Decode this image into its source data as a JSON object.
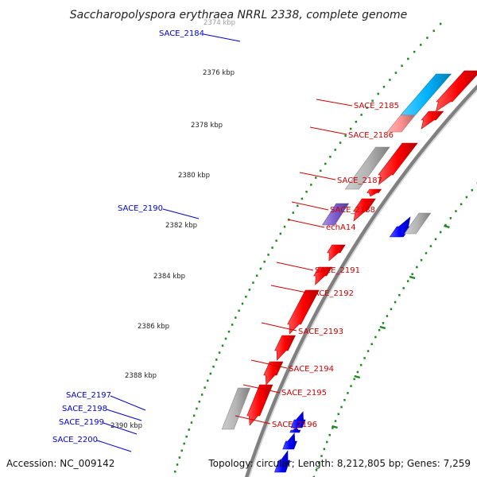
{
  "title": "Saccharopolyspora erythraea NRRL 2338, complete genome",
  "footer": {
    "accession": "Accession: NC_009142",
    "summary": "Topology: circular; Length: 8,212,805 bp; Genes: 7,259"
  },
  "colors": {
    "forward_gene": "#0000ff",
    "reverse_gene": "#ff0000",
    "label_left": "#0000cc",
    "label_right": "#cc0000",
    "tick": "#1a8a1a",
    "backbone": "#808080",
    "gray_gene": "#b4b4b4",
    "cyan_gene": "#00b4ff",
    "pink_gene": "#ff9090",
    "purple_gene": "#7a5ccc"
  },
  "scale_labels": [
    {
      "text": "2374 kbp",
      "kbp": 2374,
      "faded": true
    },
    {
      "text": "2376 kbp",
      "kbp": 2376
    },
    {
      "text": "2378 kbp",
      "kbp": 2378
    },
    {
      "text": "2380 kbp",
      "kbp": 2380
    },
    {
      "text": "2382 kbp",
      "kbp": 2382
    },
    {
      "text": "2384 kbp",
      "kbp": 2384
    },
    {
      "text": "2386 kbp",
      "kbp": 2386
    },
    {
      "text": "2388 kbp",
      "kbp": 2388
    },
    {
      "text": "2390 kbp",
      "kbp": 2390
    }
  ],
  "left_labels": [
    {
      "name": "SACE_2184"
    },
    {
      "name": "SACE_2190"
    },
    {
      "name": "SACE_2197"
    },
    {
      "name": "SACE_2198"
    },
    {
      "name": "SACE_2199"
    },
    {
      "name": "SACE_2200"
    }
  ],
  "right_labels": [
    {
      "name": "SACE_2185"
    },
    {
      "name": "SACE_2186"
    },
    {
      "name": "SACE_2187"
    },
    {
      "name": "SACE_2188"
    },
    {
      "name": "echA14"
    },
    {
      "name": "SACE_2191"
    },
    {
      "name": "SACE_2192"
    },
    {
      "name": "SACE_2193"
    },
    {
      "name": "SACE_2194"
    },
    {
      "name": "SACE_2195"
    },
    {
      "name": "SACE_2196"
    }
  ],
  "genes": [
    {
      "id": "SACE_2184",
      "strand": "forward",
      "color": "forward_gene"
    },
    {
      "id": "SACE_2185",
      "strand": "reverse",
      "color": "reverse_gene"
    },
    {
      "id": "SACE_2185-cog",
      "strand": "none",
      "color": "cyan_gene"
    },
    {
      "id": "SACE_2186",
      "strand": "reverse",
      "color": "reverse_gene"
    },
    {
      "id": "SACE_2186-cog",
      "strand": "none",
      "color": "pink_gene"
    },
    {
      "id": "SACE_2187",
      "strand": "reverse",
      "color": "reverse_gene"
    },
    {
      "id": "SACE_2187-cog",
      "strand": "none",
      "color": "gray_gene"
    },
    {
      "id": "SACE_2188",
      "strand": "reverse",
      "color": "reverse_gene"
    },
    {
      "id": "echA14",
      "strand": "reverse",
      "color": "reverse_gene"
    },
    {
      "id": "echA14-cog",
      "strand": "none",
      "color": "purple_gene"
    },
    {
      "id": "SACE_2190",
      "strand": "forward",
      "color": "forward_gene"
    },
    {
      "id": "SACE_2190-cog",
      "strand": "none",
      "color": "gray_gene"
    },
    {
      "id": "SACE_2191",
      "strand": "reverse",
      "color": "reverse_gene"
    },
    {
      "id": "SACE_2192",
      "strand": "reverse",
      "color": "reverse_gene"
    },
    {
      "id": "SACE_2193",
      "strand": "reverse",
      "color": "reverse_gene"
    },
    {
      "id": "SACE_2194",
      "strand": "reverse",
      "color": "reverse_gene"
    },
    {
      "id": "SACE_2195",
      "strand": "reverse",
      "color": "reverse_gene"
    },
    {
      "id": "SACE_2196",
      "strand": "reverse",
      "color": "reverse_gene"
    },
    {
      "id": "SACE_2196-cog",
      "strand": "none",
      "color": "gray_gene"
    },
    {
      "id": "SACE_2197",
      "strand": "forward",
      "color": "forward_gene"
    },
    {
      "id": "SACE_2198",
      "strand": "forward",
      "color": "forward_gene"
    },
    {
      "id": "SACE_2199",
      "strand": "forward",
      "color": "forward_gene"
    },
    {
      "id": "SACE_2200",
      "strand": "forward",
      "color": "forward_gene"
    }
  ]
}
